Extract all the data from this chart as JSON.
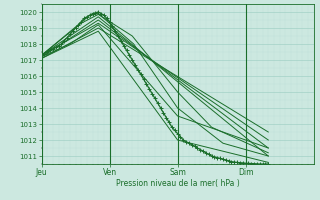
{
  "xlabel": "Pression niveau de la mer( hPa )",
  "background_color": "#cce8e0",
  "plot_bg_color": "#cce8e0",
  "grid_color_major": "#99ccc0",
  "grid_color_minor": "#b8ddd8",
  "line_color": "#1a6e2a",
  "ylim": [
    1010.5,
    1020.5
  ],
  "yticks": [
    1011,
    1012,
    1013,
    1014,
    1015,
    1016,
    1017,
    1018,
    1019,
    1020
  ],
  "day_labels": [
    "Jeu",
    "Ven",
    "Sam",
    "Dim"
  ],
  "day_positions": [
    0,
    96,
    192,
    288
  ],
  "total_steps": 384,
  "series": [
    {
      "x": [
        0,
        4,
        8,
        12,
        16,
        20,
        24,
        28,
        32,
        36,
        40,
        44,
        48,
        52,
        56,
        60,
        64,
        68,
        72,
        76,
        80,
        84,
        88,
        92,
        96,
        100,
        104,
        108,
        112,
        116,
        120,
        124,
        128,
        132,
        136,
        140,
        144,
        148,
        152,
        156,
        160,
        164,
        168,
        172,
        176,
        180,
        184,
        188,
        192,
        196,
        200,
        204,
        208,
        212,
        216,
        220,
        224,
        228,
        232,
        236,
        240,
        244,
        248,
        252,
        256,
        260,
        264,
        268,
        272,
        276,
        280,
        284,
        288,
        292,
        296,
        300,
        304,
        308,
        312,
        316,
        320
      ],
      "y": [
        1017.3,
        1017.4,
        1017.5,
        1017.6,
        1017.7,
        1017.8,
        1017.9,
        1018.0,
        1018.2,
        1018.4,
        1018.6,
        1018.8,
        1019.0,
        1019.2,
        1019.4,
        1019.6,
        1019.7,
        1019.8,
        1019.9,
        1019.95,
        1020.0,
        1019.9,
        1019.8,
        1019.6,
        1019.4,
        1019.1,
        1018.8,
        1018.5,
        1018.2,
        1017.9,
        1017.6,
        1017.3,
        1017.0,
        1016.7,
        1016.4,
        1016.1,
        1015.8,
        1015.5,
        1015.2,
        1014.9,
        1014.6,
        1014.3,
        1014.0,
        1013.7,
        1013.4,
        1013.1,
        1012.8,
        1012.6,
        1012.4,
        1012.2,
        1012.0,
        1011.9,
        1011.8,
        1011.7,
        1011.6,
        1011.5,
        1011.4,
        1011.3,
        1011.2,
        1011.1,
        1011.0,
        1010.95,
        1010.9,
        1010.85,
        1010.8,
        1010.75,
        1010.7,
        1010.65,
        1010.62,
        1010.6,
        1010.58,
        1010.57,
        1010.55,
        1010.54,
        1010.53,
        1010.52,
        1010.51,
        1010.5,
        1010.5,
        1010.5,
        1010.5
      ],
      "has_markers": true,
      "linewidth": 0.9
    },
    {
      "x": [
        0,
        80,
        320
      ],
      "y": [
        1017.3,
        1019.7,
        1011.0
      ],
      "has_markers": false,
      "linewidth": 0.7
    },
    {
      "x": [
        0,
        80,
        320
      ],
      "y": [
        1017.2,
        1019.5,
        1011.5
      ],
      "has_markers": false,
      "linewidth": 0.7
    },
    {
      "x": [
        0,
        80,
        320
      ],
      "y": [
        1017.3,
        1019.3,
        1012.0
      ],
      "has_markers": false,
      "linewidth": 0.7
    },
    {
      "x": [
        0,
        80,
        320
      ],
      "y": [
        1017.1,
        1019.0,
        1012.5
      ],
      "has_markers": false,
      "linewidth": 0.7
    },
    {
      "x": [
        0,
        56,
        80,
        128,
        192,
        240,
        320
      ],
      "y": [
        1017.3,
        1019.3,
        1019.85,
        1018.5,
        1015.0,
        1012.8,
        1011.2
      ],
      "has_markers": false,
      "linewidth": 0.7
    },
    {
      "x": [
        0,
        68,
        80,
        130,
        192,
        256,
        320
      ],
      "y": [
        1017.3,
        1019.8,
        1019.9,
        1018.0,
        1014.0,
        1011.8,
        1011.0
      ],
      "has_markers": false,
      "linewidth": 0.7
    },
    {
      "x": [
        0,
        40,
        80,
        192,
        320
      ],
      "y": [
        1017.2,
        1018.0,
        1019.2,
        1013.5,
        1011.5
      ],
      "has_markers": false,
      "linewidth": 0.7
    },
    {
      "x": [
        0,
        80,
        192,
        320
      ],
      "y": [
        1017.1,
        1018.8,
        1012.0,
        1010.6
      ],
      "has_markers": false,
      "linewidth": 0.7
    }
  ]
}
